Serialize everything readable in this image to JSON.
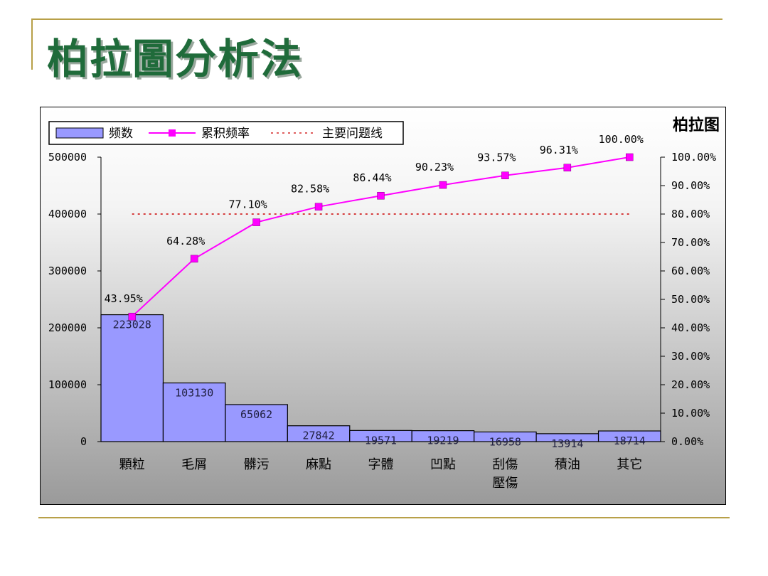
{
  "slide": {
    "title": "柏拉圖分析法"
  },
  "colors": {
    "title": "#1f6b3a",
    "rule": "#b8a048",
    "bar_fill": "#9999ff",
    "line": "#ff00ff",
    "threshold": "#cc0000"
  },
  "chart_data": {
    "type": "bar",
    "title": "柏拉图",
    "categories": [
      "顆粒",
      "毛屑",
      "髒污",
      "麻點",
      "字體",
      "凹點",
      "刮傷\n壓傷",
      "積油",
      "其它"
    ],
    "series": [
      {
        "name": "频数",
        "type": "bar",
        "values": [
          223028,
          103130,
          65062,
          27842,
          19571,
          19219,
          16958,
          13914,
          18714
        ],
        "data_labels": [
          "223028",
          "103130",
          "65062",
          "27842",
          "19571",
          "19219",
          "16958",
          "13914",
          "18714"
        ]
      },
      {
        "name": "累积频率",
        "type": "line",
        "axis": "right",
        "values": [
          43.95,
          64.28,
          77.1,
          82.58,
          86.44,
          90.23,
          93.57,
          96.31,
          100.0
        ],
        "data_labels": [
          "43.95%",
          "64.28%",
          "77.10%",
          "82.58%",
          "86.44%",
          "90.23%",
          "93.57%",
          "96.31%",
          "100.00%"
        ]
      },
      {
        "name": "主要问题线",
        "type": "line",
        "axis": "right",
        "value": 80
      }
    ],
    "ylim": [
      0,
      500000
    ],
    "y_ticks": [
      "0",
      "100000",
      "200000",
      "300000",
      "400000",
      "500000"
    ],
    "y2lim": [
      0,
      100
    ],
    "y2_ticks": [
      "0.00%",
      "10.00%",
      "20.00%",
      "30.00%",
      "40.00%",
      "50.00%",
      "60.00%",
      "70.00%",
      "80.00%",
      "90.00%",
      "100.00%"
    ],
    "legend": {
      "position": "top-left",
      "entries": [
        "频数",
        "累积频率",
        "主要问题线"
      ]
    },
    "grid": false
  }
}
